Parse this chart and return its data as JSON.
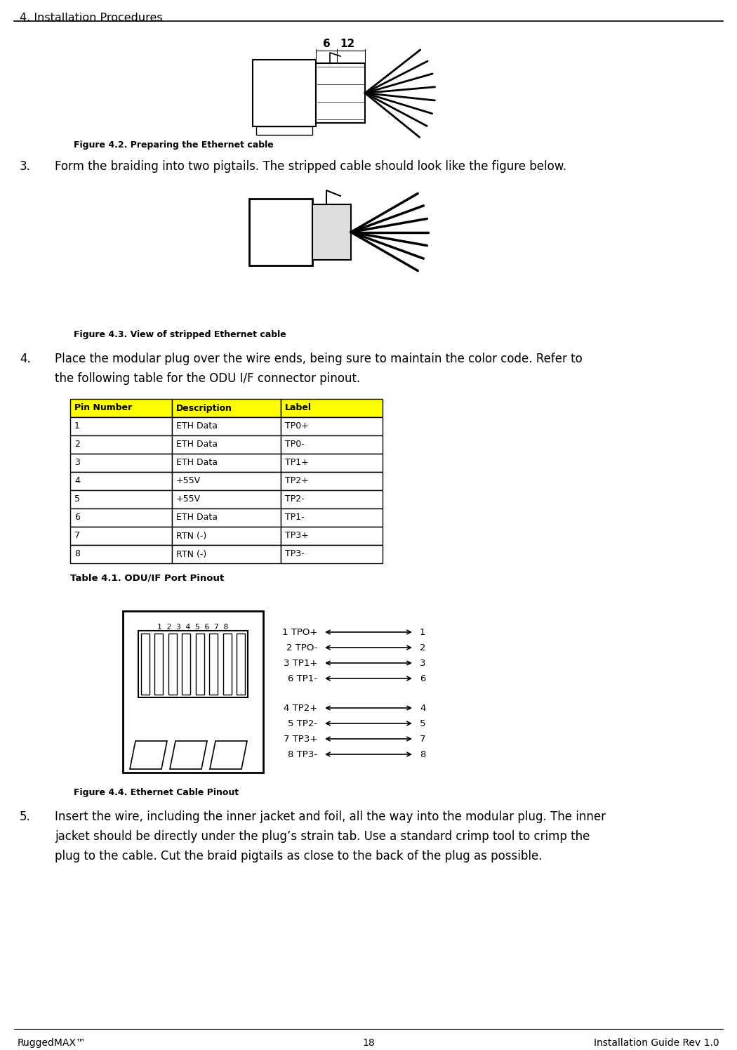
{
  "header_text": "4. Installation Procedures",
  "footer_left": "RuggedMAX™",
  "footer_center": "18",
  "footer_right": "Installation Guide Rev 1.0",
  "fig42_caption": "Figure 4.2. Preparing the Ethernet cable",
  "step3_number": "3.",
  "step3_body": "Form the braiding into two pigtails. The stripped cable should look like the figure below.",
  "fig43_caption": "Figure 4.3. View of stripped Ethernet cable",
  "step4_number": "4.",
  "step4_line1": "Place the modular plug over the wire ends, being sure to maintain the color code. Refer to",
  "step4_line2": "the following table for the ODU I/F connector pinout.",
  "table_header": [
    "Pin Number",
    "Description",
    "Label"
  ],
  "table_rows": [
    [
      "1",
      "ETH Data",
      "TP0+"
    ],
    [
      "2",
      "ETH Data",
      "TP0-"
    ],
    [
      "3",
      "ETH Data",
      "TP1+"
    ],
    [
      "4",
      "+55V",
      "TP2+"
    ],
    [
      "5",
      "+55V",
      "TP2-"
    ],
    [
      "6",
      "ETH Data",
      "TP1-"
    ],
    [
      "7",
      "RTN (-)",
      "TP3+"
    ],
    [
      "8",
      "RTN (-)",
      "TP3-"
    ]
  ],
  "table_caption": "Table 4.1. ODU/IF Port Pinout",
  "fig44_caption": "Figure 4.4. Ethernet Cable Pinout",
  "step5_number": "5.",
  "step5_line1": "Insert the wire, including the inner jacket and foil, all the way into the modular plug. The inner",
  "step5_line2": "jacket should be directly under the plug’s strain tab. Use a standard crimp tool to crimp the",
  "step5_line3": "plug to the cable. Cut the braid pigtails as close to the back of the plug as possible.",
  "table_header_color": "#FFFF00",
  "pinout_left_group1": [
    "1 TPO+",
    "2 TPO-",
    "3 TP1+",
    "6 TP1-"
  ],
  "pinout_right_group1": [
    "1",
    "2",
    "3",
    "6"
  ],
  "pinout_left_group2": [
    "4 TP2+",
    "5 TP2-",
    "7 TP3+",
    "8 TP3-"
  ],
  "pinout_right_group2": [
    "4",
    "5",
    "7",
    "8"
  ],
  "pin_numbers_header": "1 2 3 4 5 6 7 8",
  "fig42_label_6": "6",
  "fig42_label_12": "12"
}
